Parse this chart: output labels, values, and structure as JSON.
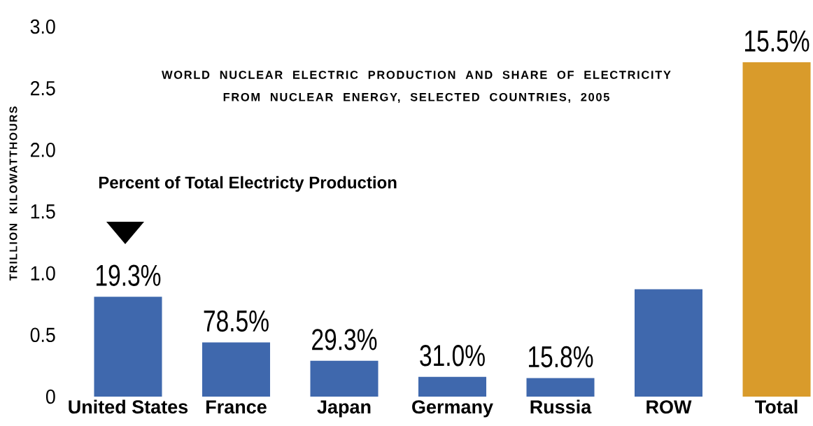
{
  "chart_data": {
    "type": "bar",
    "title": "WORLD NUCLEAR ELECTRIC PRODUCTION AND SHARE OF ELECTRICITY",
    "subtitle": "FROM NUCLEAR ENERGY, SELECTED COUNTRIES, 2005",
    "ylabel": "TRILLION KILOWATTHOURS",
    "categories": [
      "United States",
      "France",
      "Japan",
      "Germany",
      "Russia",
      "ROW",
      "Total"
    ],
    "values": [
      0.81,
      0.44,
      0.29,
      0.16,
      0.15,
      0.87,
      2.71
    ],
    "colors": [
      "#3f68ad",
      "#3f68ad",
      "#3f68ad",
      "#3f68ad",
      "#3f68ad",
      "#3f68ad",
      "#d99b2b"
    ],
    "annotations": [
      "Percent of Total Electricty Production",
      {
        "text": "19.3%",
        "x": "United States",
        "y": 0.81
      },
      {
        "text": "78.5%",
        "x": "France",
        "y": 0.44
      },
      {
        "text": "29.3%",
        "x": "Japan",
        "y": 0.29
      },
      {
        "text": "31.0%",
        "x": "Germany",
        "y": 0.16
      },
      {
        "text": "15.8%",
        "x": "Russia",
        "y": 0.15
      },
      {
        "text": "15.5%",
        "x": "Total",
        "y": 2.71
      }
    ],
    "ylim": [
      0,
      3
    ],
    "yticks": [
      0,
      0.5,
      {
        "value": 1,
        "label": "1.0"
      },
      1.5,
      {
        "value": 2,
        "label": "2.0"
      },
      2.5,
      {
        "value": 3,
        "label": "3.0"
      }
    ]
  }
}
